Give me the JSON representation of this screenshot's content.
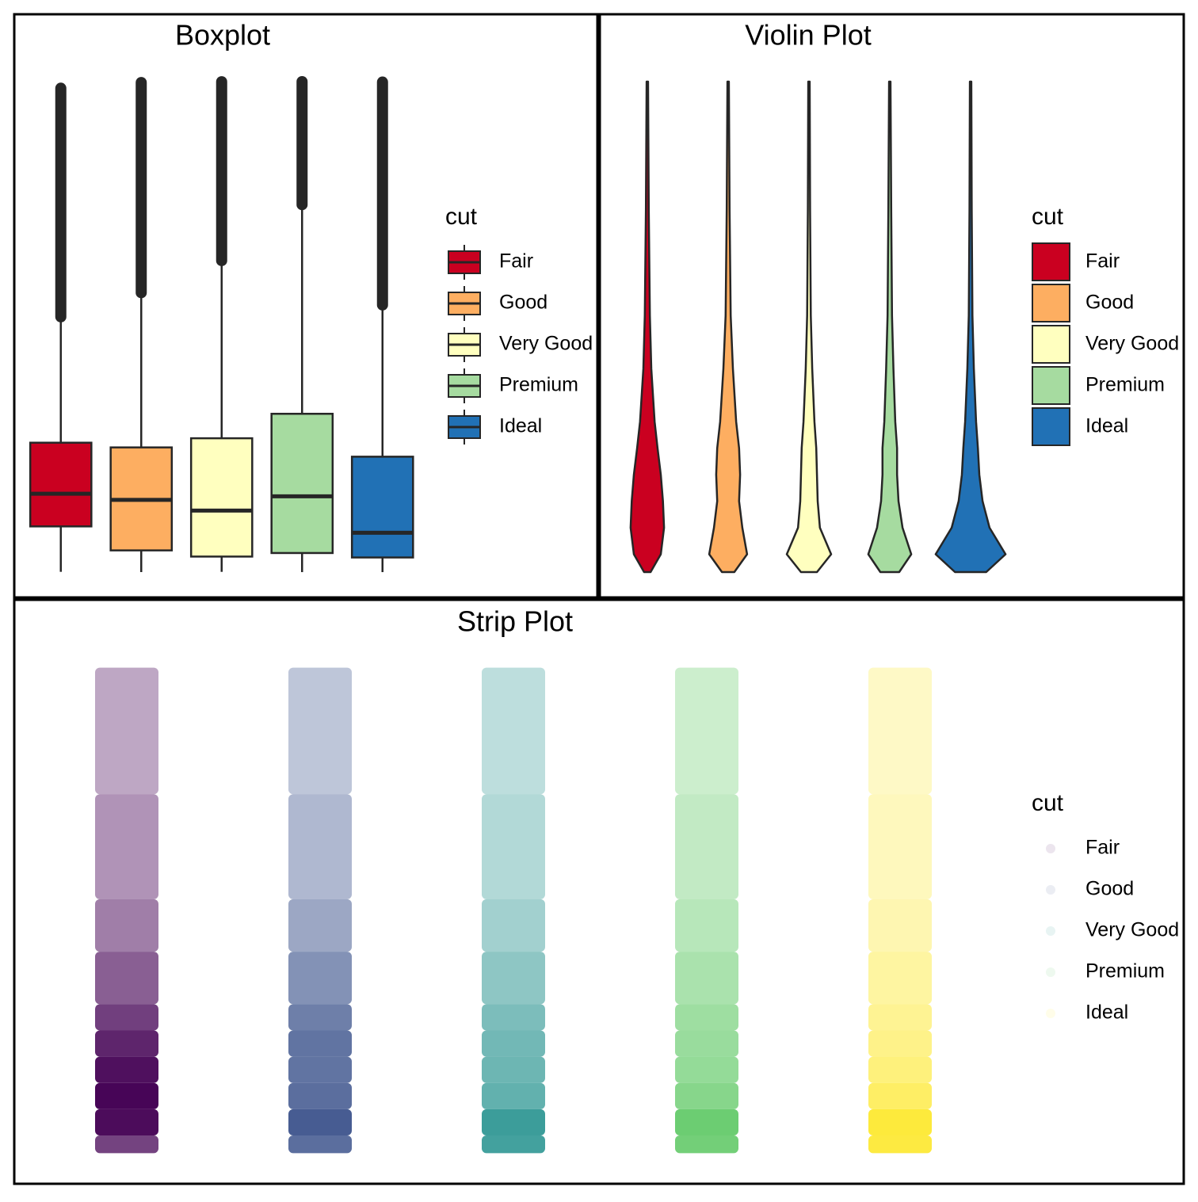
{
  "chart_data": [
    {
      "type": "box",
      "title": "Boxplot",
      "legend_title": "cut",
      "categories": [
        "Fair",
        "Good",
        "Very Good",
        "Premium",
        "Ideal"
      ],
      "colors": [
        "#ca0020",
        "#fdae61",
        "#ffffbf",
        "#a6dba0",
        "#2171b5"
      ],
      "min": [
        337,
        327,
        336,
        326,
        326
      ],
      "q1": [
        2050,
        1145,
        912,
        1046,
        878
      ],
      "median": [
        3282,
        3050,
        2648,
        3185,
        1810
      ],
      "q3": [
        5206,
        5028,
        5373,
        6296,
        4678
      ],
      "whisker_high": [
        9925,
        10823,
        12050,
        14150,
        10373
      ],
      "outlier_low": [
        9950,
        10860,
        12070,
        14180,
        10400
      ],
      "outlier_high": [
        18574,
        18788,
        18818,
        18823,
        18806
      ],
      "ylim": [
        -599,
        19748
      ]
    },
    {
      "type": "violin",
      "title": "Violin Plot",
      "legend_title": "cut",
      "categories": [
        "Fair",
        "Good",
        "Very Good",
        "Premium",
        "Ideal"
      ],
      "colors": [
        "#ca0020",
        "#fdae61",
        "#ffffbf",
        "#a6dba0",
        "#2171b5"
      ],
      "density_y": [
        326,
        1000,
        2000,
        3000,
        4000,
        5000,
        6000,
        8000,
        10000,
        14000,
        18823
      ],
      "densities": [
        [
          0.09,
          0.37,
          0.46,
          0.43,
          0.37,
          0.28,
          0.2,
          0.11,
          0.07,
          0.04,
          0.02
        ],
        [
          0.17,
          0.52,
          0.39,
          0.3,
          0.33,
          0.3,
          0.22,
          0.13,
          0.07,
          0.04,
          0.02
        ],
        [
          0.22,
          0.61,
          0.3,
          0.24,
          0.22,
          0.2,
          0.15,
          0.09,
          0.05,
          0.03,
          0.02
        ],
        [
          0.26,
          0.59,
          0.35,
          0.24,
          0.2,
          0.2,
          0.15,
          0.1,
          0.06,
          0.04,
          0.02
        ],
        [
          0.43,
          0.96,
          0.52,
          0.33,
          0.24,
          0.2,
          0.15,
          0.09,
          0.05,
          0.03,
          0.02
        ]
      ],
      "ylim": [
        -599,
        19748
      ]
    },
    {
      "type": "strip",
      "title": "Strip Plot",
      "legend_title": "cut",
      "categories": [
        "Fair",
        "Good",
        "Very Good",
        "Premium",
        "Ideal"
      ],
      "colors": [
        "#440154",
        "#3b528b",
        "#21908c",
        "#5dc863",
        "#fde725"
      ],
      "density_y": [
        326,
        1000,
        2000,
        3000,
        4000,
        5000,
        6000,
        8000,
        10000,
        14000,
        18823
      ],
      "densities": [
        [
          0.09,
          0.37,
          0.46,
          0.43,
          0.37,
          0.28,
          0.2,
          0.11,
          0.07,
          0.04,
          0.02
        ],
        [
          0.17,
          0.52,
          0.39,
          0.3,
          0.33,
          0.3,
          0.22,
          0.13,
          0.07,
          0.04,
          0.02
        ],
        [
          0.22,
          0.61,
          0.3,
          0.24,
          0.22,
          0.2,
          0.15,
          0.09,
          0.05,
          0.03,
          0.02
        ],
        [
          0.26,
          0.59,
          0.35,
          0.24,
          0.2,
          0.2,
          0.15,
          0.1,
          0.06,
          0.04,
          0.02
        ],
        [
          0.43,
          0.96,
          0.52,
          0.33,
          0.24,
          0.2,
          0.15,
          0.09,
          0.05,
          0.03,
          0.02
        ]
      ],
      "ylim": [
        -599,
        19748
      ]
    }
  ]
}
